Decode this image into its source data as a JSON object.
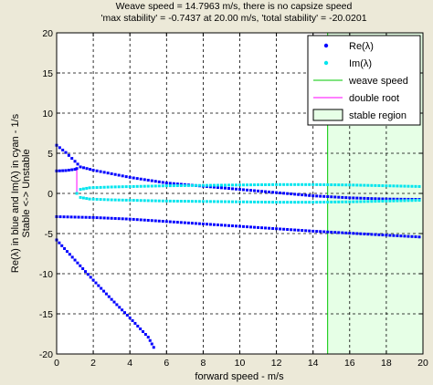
{
  "figure": {
    "background": "#ece9d8"
  },
  "chart_data": {
    "type": "scatter",
    "title_lines": [
      "Weave speed = 14.7963 m/s, there is no capsize speed",
      "'max stability' = -0.7437 at 20.00 m/s, 'total stability' = -20.0201"
    ],
    "xlabel": "forward speed - m/s",
    "ylabel_lines": [
      "Re(λ) in blue and Im(λ) in cyan - 1/s",
      "Stable <-> Unstable"
    ],
    "xlim": [
      0,
      20
    ],
    "ylim": [
      -20,
      20
    ],
    "xticks": [
      0,
      2,
      4,
      6,
      8,
      10,
      12,
      14,
      16,
      18,
      20
    ],
    "yticks": [
      -20,
      -15,
      -10,
      -5,
      0,
      5,
      10,
      15,
      20
    ],
    "grid": true,
    "legend_position": "top-right",
    "legend": [
      {
        "label": "Re(λ)",
        "kind": "marker",
        "color": "#0000ff"
      },
      {
        "label": "Im(λ)",
        "kind": "marker",
        "color": "#00e5ee"
      },
      {
        "label": "weave speed",
        "kind": "line",
        "color": "#00c800"
      },
      {
        "label": "double root",
        "kind": "line",
        "color": "#ff00ff"
      },
      {
        "label": "stable region",
        "kind": "patch",
        "color": "#e6ffe6"
      }
    ],
    "weave_speed": 14.7963,
    "double_root_speed": 1.1,
    "stable_region": [
      14.7963,
      20
    ],
    "series": [
      {
        "name": "Re(λ)",
        "color": "#0000ff",
        "segments": [
          [
            [
              0,
              2.8
            ],
            [
              0.5,
              2.85
            ],
            [
              1.0,
              3.0
            ],
            [
              1.1,
              3.1
            ],
            [
              1.3,
              3.3
            ],
            [
              2,
              2.9
            ],
            [
              4,
              2.0
            ],
            [
              6,
              1.3
            ],
            [
              8,
              0.9
            ],
            [
              10,
              0.5
            ],
            [
              12,
              0.1
            ],
            [
              14,
              -0.3
            ],
            [
              16,
              -0.55
            ],
            [
              18,
              -0.7
            ],
            [
              20,
              -0.75
            ]
          ],
          [
            [
              0,
              6.0
            ],
            [
              0.5,
              5.1
            ],
            [
              1.0,
              4.0
            ],
            [
              1.3,
              3.3
            ]
          ],
          [
            [
              0,
              -2.9
            ],
            [
              2,
              -3.0
            ],
            [
              4,
              -3.2
            ],
            [
              6,
              -3.5
            ],
            [
              8,
              -3.8
            ],
            [
              10,
              -4.1
            ],
            [
              12,
              -4.4
            ],
            [
              14,
              -4.7
            ],
            [
              16,
              -4.95
            ],
            [
              18,
              -5.2
            ],
            [
              20,
              -5.45
            ]
          ],
          [
            [
              0,
              -5.8
            ],
            [
              1,
              -8.3
            ],
            [
              2,
              -10.8
            ],
            [
              3,
              -13.2
            ],
            [
              4,
              -15.5
            ],
            [
              5,
              -17.9
            ],
            [
              5.4,
              -19.6
            ]
          ]
        ]
      },
      {
        "name": "Im(λ)",
        "color": "#00e5ee",
        "segments": [
          [
            [
              1.1,
              0.0
            ],
            [
              1.3,
              0.5
            ],
            [
              1.8,
              0.7
            ],
            [
              3,
              0.8
            ],
            [
              4,
              0.85
            ],
            [
              6,
              0.95
            ],
            [
              8,
              1.0
            ],
            [
              10,
              1.05
            ],
            [
              12,
              1.1
            ],
            [
              14,
              1.1
            ],
            [
              16,
              1.05
            ],
            [
              18,
              0.95
            ],
            [
              20,
              0.85
            ]
          ],
          [
            [
              1.1,
              0.0
            ],
            [
              1.3,
              -0.5
            ],
            [
              1.8,
              -0.7
            ],
            [
              3,
              -0.8
            ],
            [
              4,
              -0.85
            ],
            [
              6,
              -0.95
            ],
            [
              8,
              -1.0
            ],
            [
              10,
              -1.05
            ],
            [
              12,
              -1.1
            ],
            [
              14,
              -1.1
            ],
            [
              16,
              -1.05
            ],
            [
              18,
              -0.95
            ],
            [
              20,
              -0.85
            ]
          ]
        ]
      }
    ]
  }
}
